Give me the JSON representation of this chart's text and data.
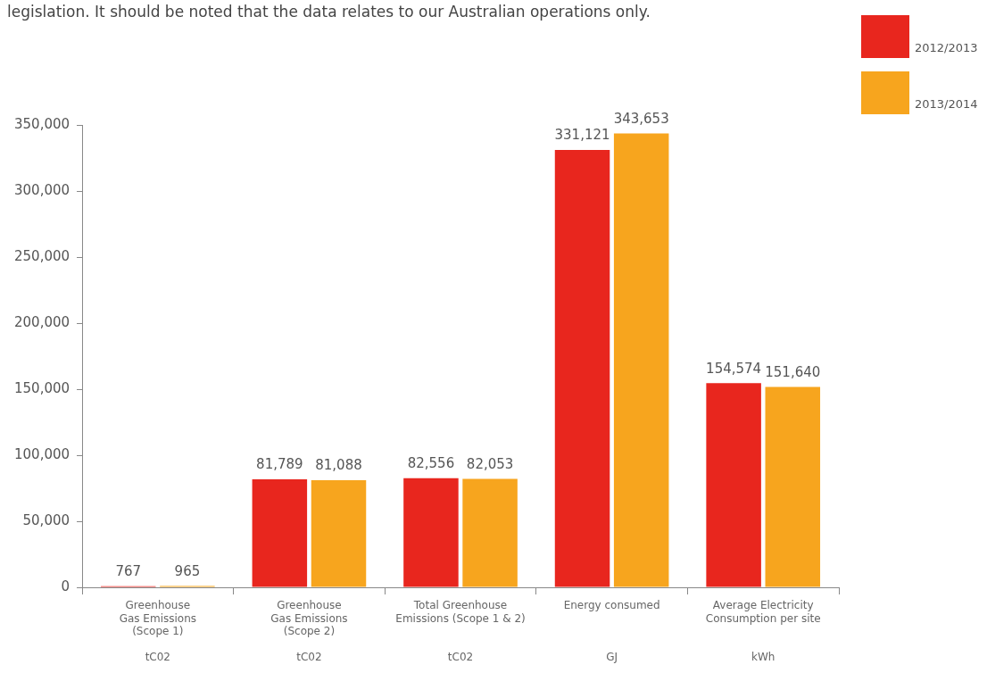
{
  "chart_data": {
    "type": "bar",
    "categories": [
      "Greenhouse\nGas Emissions\n(Scope 1)\n\ntC02",
      "Greenhouse\nGas Emissions\n(Scope 2)\n\ntC02",
      "Total Greenhouse\nEmissions (Scope 1 & 2)\n\n\ntC02",
      "Energy consumed\n\n\n\nGJ",
      "Average Electricity\nConsumption per site\n\n\nkWh"
    ],
    "series": [
      {
        "name": "2012/2013",
        "color": "#e8261e",
        "values": [
          767,
          81789,
          82556,
          331121,
          154574
        ],
        "value_labels": [
          "767",
          "81,789",
          "82,556",
          "331,121",
          "154,574"
        ]
      },
      {
        "name": "2013/2014",
        "color": "#f7a51e",
        "values": [
          965,
          81088,
          82053,
          343653,
          151640
        ],
        "value_labels": [
          "965",
          "81,088",
          "82,053",
          "343,653",
          "151,640"
        ]
      }
    ],
    "ylim": [
      0,
      350000
    ],
    "yticks": [
      {
        "value": 0,
        "label": "0"
      },
      {
        "value": 50000,
        "label": "50,000"
      },
      {
        "value": 100000,
        "label": "100,000"
      },
      {
        "value": 150000,
        "label": "150,000"
      },
      {
        "value": 200000,
        "label": "200,000"
      },
      {
        "value": 250000,
        "label": "250,000"
      },
      {
        "value": 300000,
        "label": "300,000"
      },
      {
        "value": 350000,
        "label": "350,000"
      }
    ],
    "grid": false,
    "legend": "top right",
    "annotations": [
      "legislation. It should be noted that the data relates to our Australian operations only."
    ]
  }
}
